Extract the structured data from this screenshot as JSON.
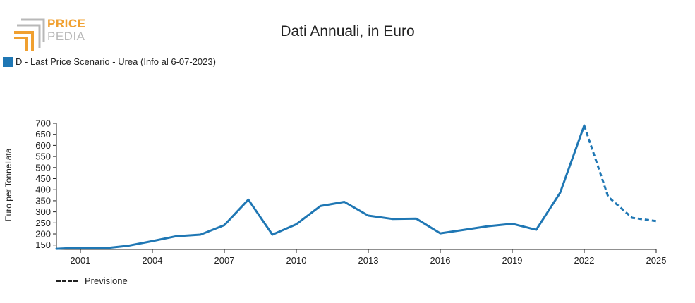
{
  "logo": {
    "line1": "PRICE",
    "line2": "PEDIA",
    "accent_color": "#f0a030",
    "muted_color": "#b8b8b8"
  },
  "chart_data": {
    "type": "line",
    "title": "Dati Annuali, in Euro",
    "xlabel": "",
    "ylabel": "Euro per Tonnellata",
    "xlim": [
      2000,
      2025
    ],
    "ylim": [
      130,
      700
    ],
    "x_ticks": [
      2001,
      2004,
      2007,
      2010,
      2013,
      2016,
      2019,
      2022,
      2025
    ],
    "y_ticks": [
      150,
      200,
      250,
      300,
      350,
      400,
      450,
      500,
      550,
      600,
      650,
      700
    ],
    "series": [
      {
        "name": "D - Last Price Scenario - Urea (Info al 6-07-2023)",
        "color": "#1f77b4",
        "style": "solid",
        "x": [
          2000,
          2001,
          2002,
          2003,
          2004,
          2005,
          2006,
          2007,
          2008,
          2009,
          2010,
          2011,
          2012,
          2013,
          2014,
          2015,
          2016,
          2017,
          2018,
          2019,
          2020,
          2021,
          2022
        ],
        "y": [
          133,
          138,
          135,
          147,
          168,
          190,
          197,
          240,
          355,
          197,
          244,
          326,
          345,
          283,
          268,
          269,
          203,
          219,
          235,
          246,
          219,
          387,
          690
        ]
      },
      {
        "name": "Previsione",
        "color": "#1f77b4",
        "style": "dashed",
        "x": [
          2022,
          2023,
          2024,
          2025
        ],
        "y": [
          690,
          368,
          273,
          258
        ]
      }
    ],
    "legend": {
      "position": "top-left"
    },
    "forecast_legend": {
      "label": "Previsione",
      "position": "bottom-left"
    }
  }
}
